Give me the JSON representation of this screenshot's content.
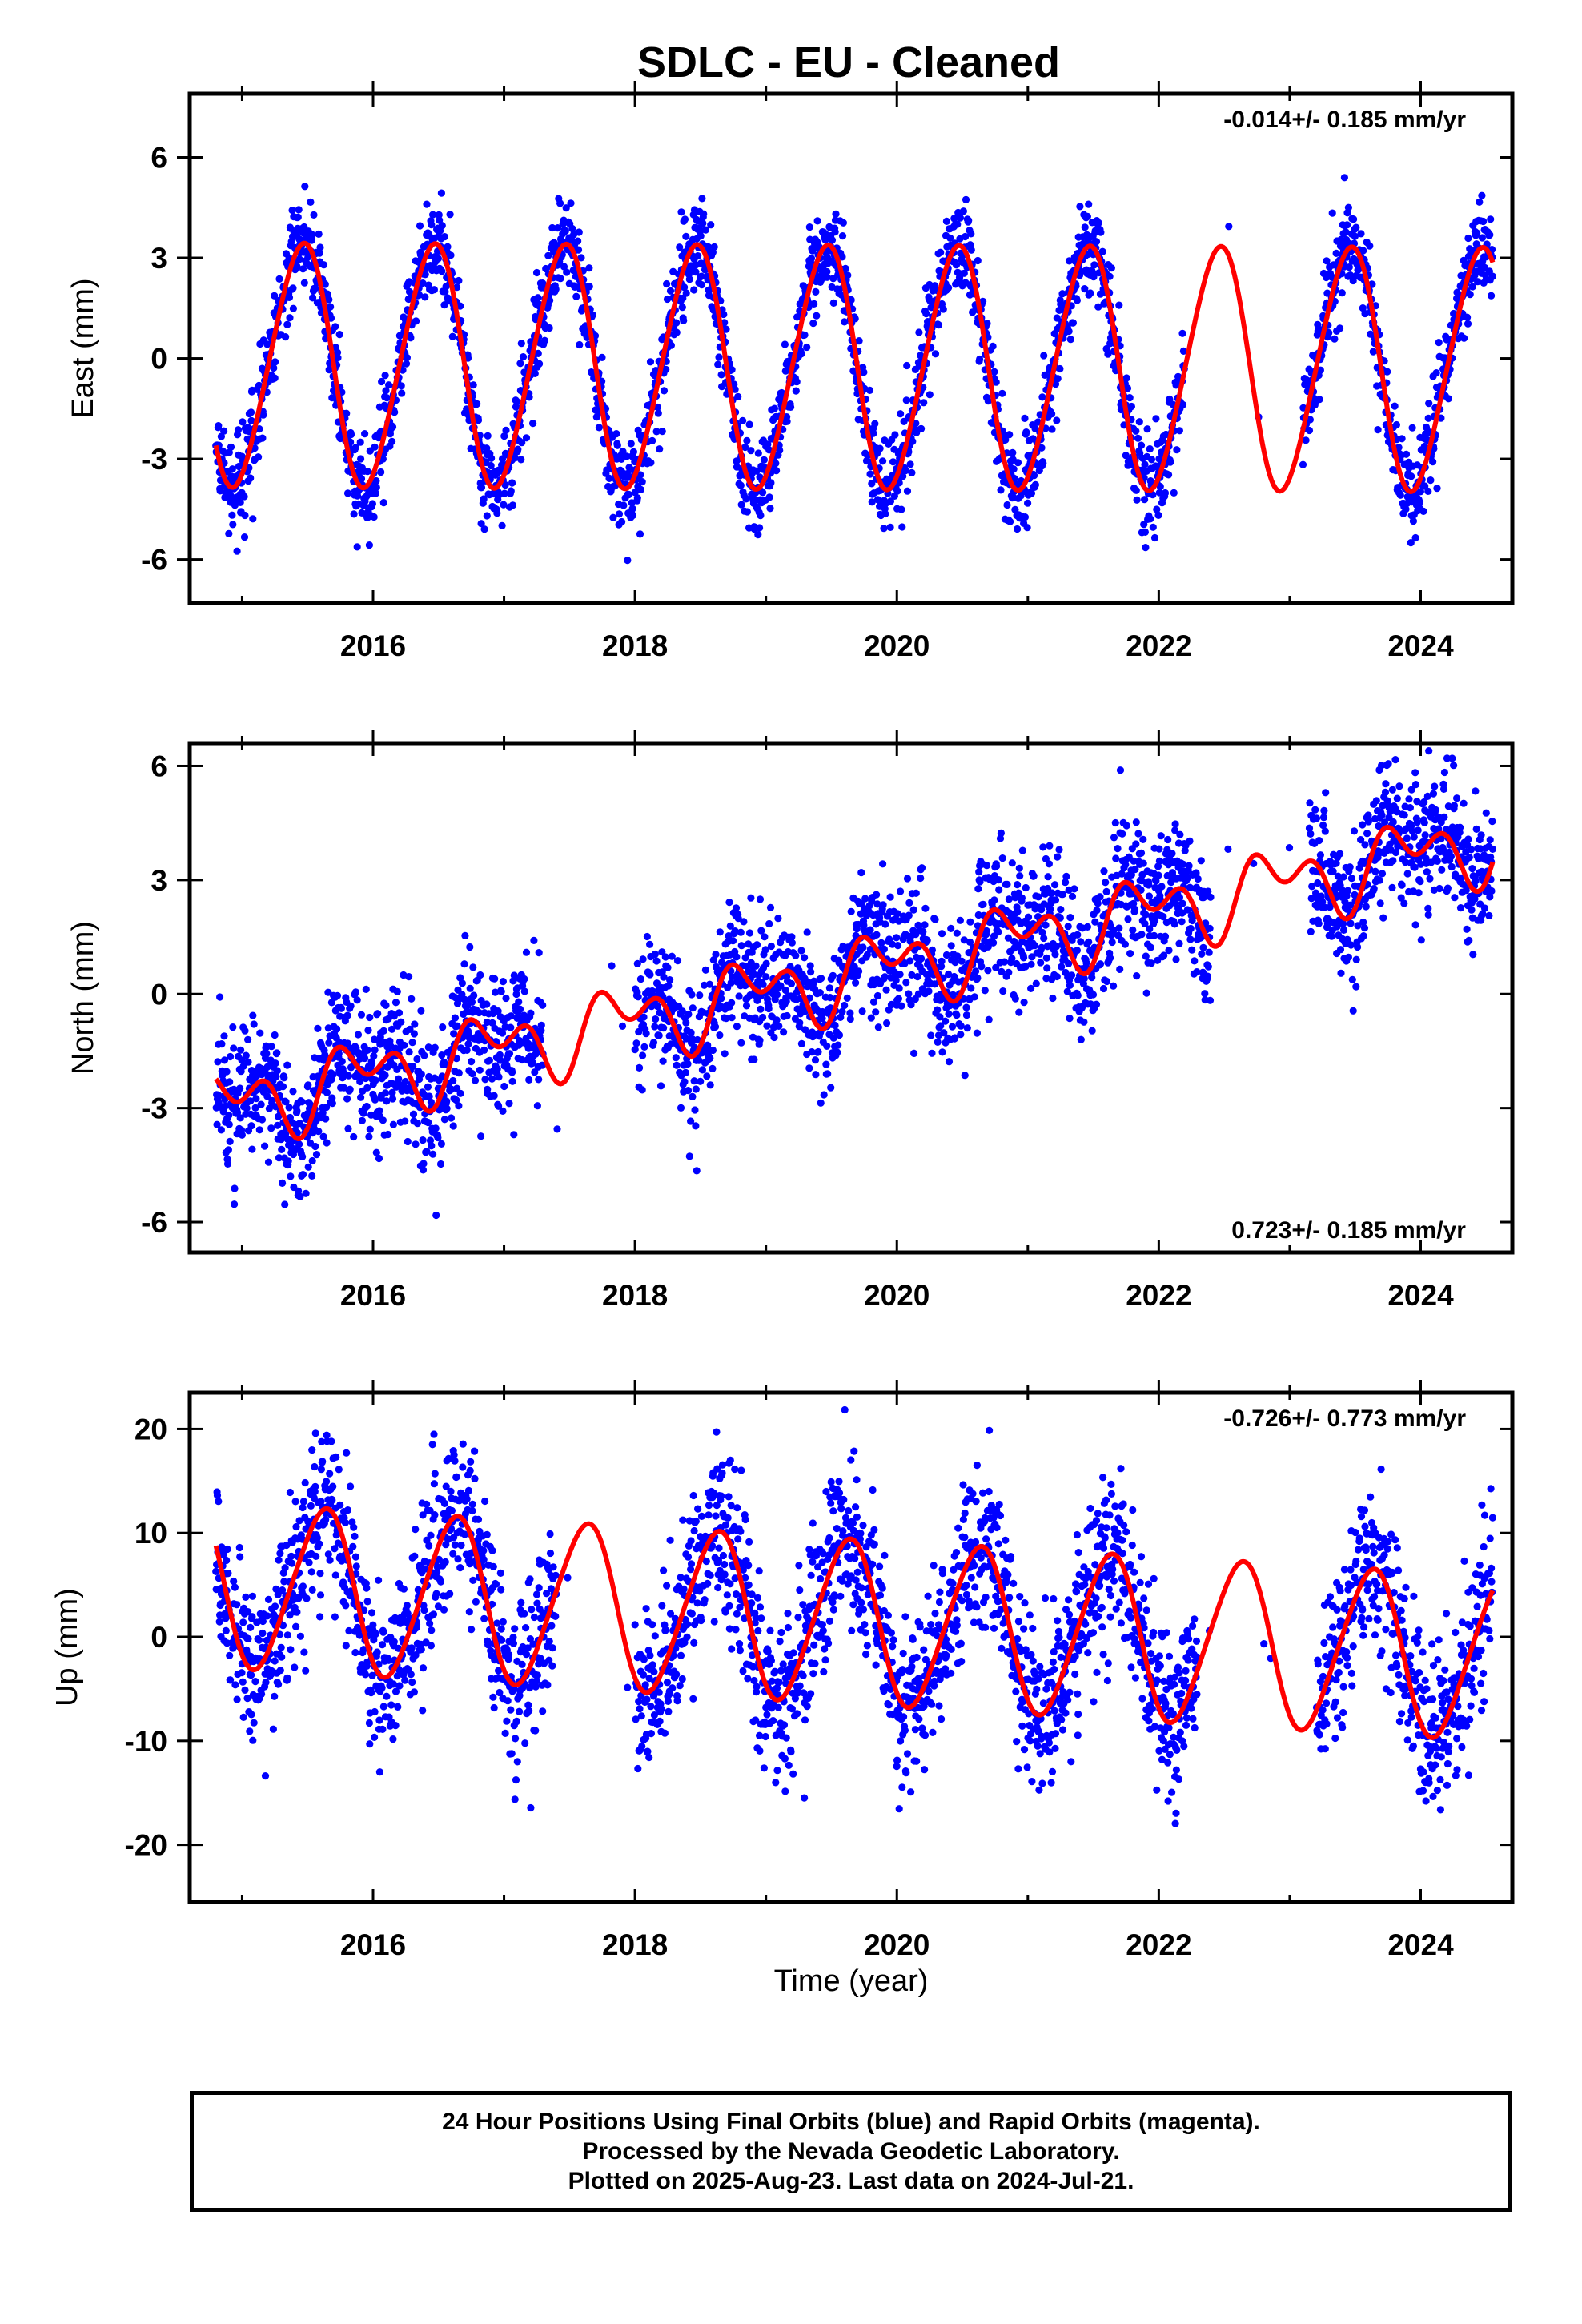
{
  "title": "SDLC  - EU - Cleaned",
  "xlabel": "Time (year)",
  "footer": {
    "line1": "24 Hour Positions Using Final Orbits (blue) and Rapid Orbits (magenta).",
    "line2": "Processed by the Nevada Geodetic Laboratory.",
    "line3": "Plotted on 2025-Aug-23. Last data on 2024-Jul-21."
  },
  "colors": {
    "points": "#0000ff",
    "model": "#ff0000",
    "axes": "#000000"
  },
  "chart_data": [
    {
      "type": "scatter",
      "ylabel": "East (mm)",
      "rate_text": "-0.014+/- 0.185 mm/yr",
      "xlim": [
        2014.6,
        2024.7
      ],
      "ylim": [
        -7.3,
        7.9
      ],
      "xticks": [
        2016,
        2018,
        2020,
        2022,
        2024
      ],
      "yticks": [
        -6,
        -3,
        0,
        3,
        6
      ],
      "data_range": [
        2014.8,
        2024.55
      ],
      "gaps": [
        [
          2022.2,
          2023.1
        ]
      ],
      "model": {
        "offset": -0.2,
        "trend": -0.014,
        "annual_amp": 3.6,
        "annual_phase_deg": 0,
        "semiannual_amp": 0.3,
        "semiannual_phase_deg": 180
      },
      "noise_sd": 0.7
    },
    {
      "type": "scatter",
      "ylabel": "North (mm)",
      "rate_text": "0.723+/- 0.185 mm/yr",
      "xlim": [
        2014.6,
        2024.7
      ],
      "ylim": [
        -6.8,
        6.6
      ],
      "xticks": [
        2016,
        2018,
        2020,
        2022,
        2024
      ],
      "yticks": [
        -6,
        -3,
        0,
        3,
        6
      ],
      "data_range": [
        2014.8,
        2024.55
      ],
      "gaps": [
        [
          2017.3,
          2018.0
        ],
        [
          2022.4,
          2023.15
        ]
      ],
      "model": {
        "offset": -3.0,
        "trend": 0.723,
        "annual_amp": 0.7,
        "annual_phase_deg": 200,
        "semiannual_amp": 0.6,
        "semiannual_phase_deg": 90
      },
      "noise_sd": 0.9
    },
    {
      "type": "scatter",
      "ylabel": "Up (mm)",
      "rate_text": "-0.726+/- 0.773 mm/yr",
      "xlim": [
        2014.6,
        2024.7
      ],
      "ylim": [
        -25.5,
        23.5
      ],
      "xticks": [
        2016,
        2018,
        2020,
        2022,
        2024
      ],
      "yticks": [
        -20,
        -10,
        0,
        10,
        20
      ],
      "data_range": [
        2014.8,
        2024.55
      ],
      "gaps": [
        [
          2017.4,
          2018.0
        ],
        [
          2022.3,
          2023.2
        ]
      ],
      "model": {
        "offset": 5.0,
        "trend": -0.726,
        "annual_amp": 7.8,
        "annual_phase_deg": 300,
        "semiannual_amp": 0.8,
        "semiannual_phase_deg": 60
      },
      "noise_sd": 4.0
    }
  ]
}
